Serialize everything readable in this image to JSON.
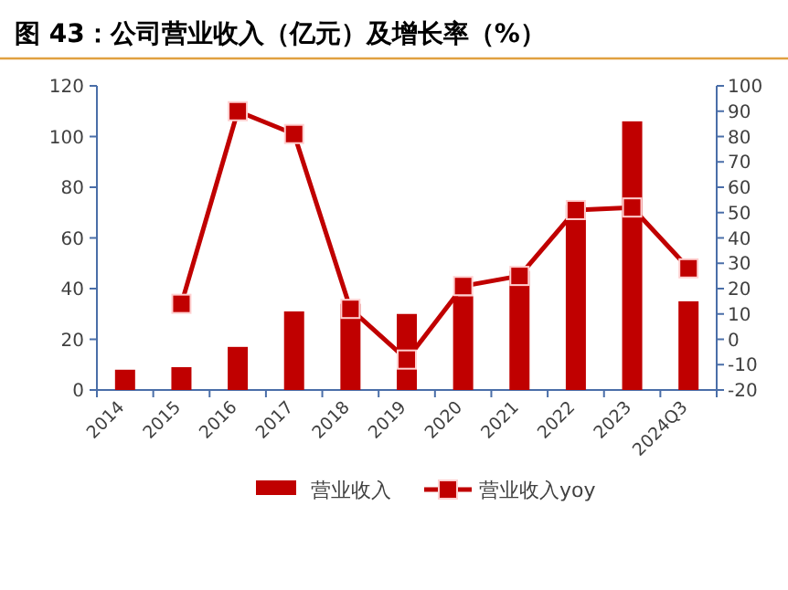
{
  "chart_data": {
    "type": "bar",
    "title": "图 43：公司营业收入（亿元）及增长率（%）",
    "categories": [
      "2014",
      "2015",
      "2016",
      "2017",
      "2018",
      "2019",
      "2020",
      "2021",
      "2022",
      "2023",
      "2024Q3"
    ],
    "series": [
      {
        "name": "营业收入",
        "color": "#c00000",
        "values": [
          8,
          9,
          17,
          31,
          34,
          30,
          37,
          47,
          73,
          106,
          35
        ]
      },
      {
        "name": "营业收入yoy",
        "type": "line",
        "axis": "y2",
        "color": "#c00000",
        "marker": "square",
        "values": [
          null,
          14,
          90,
          81,
          12,
          -8,
          21,
          25,
          51,
          52,
          28
        ]
      }
    ],
    "ylim": [
      0,
      120
    ],
    "yticks": [
      0,
      20,
      40,
      60,
      80,
      100,
      120
    ],
    "y2lim": [
      -20,
      100
    ],
    "y2ticks": [
      -20,
      -10,
      0,
      10,
      20,
      30,
      40,
      50,
      60,
      70,
      80,
      90,
      100
    ],
    "legend": "bottom",
    "grid": false
  }
}
